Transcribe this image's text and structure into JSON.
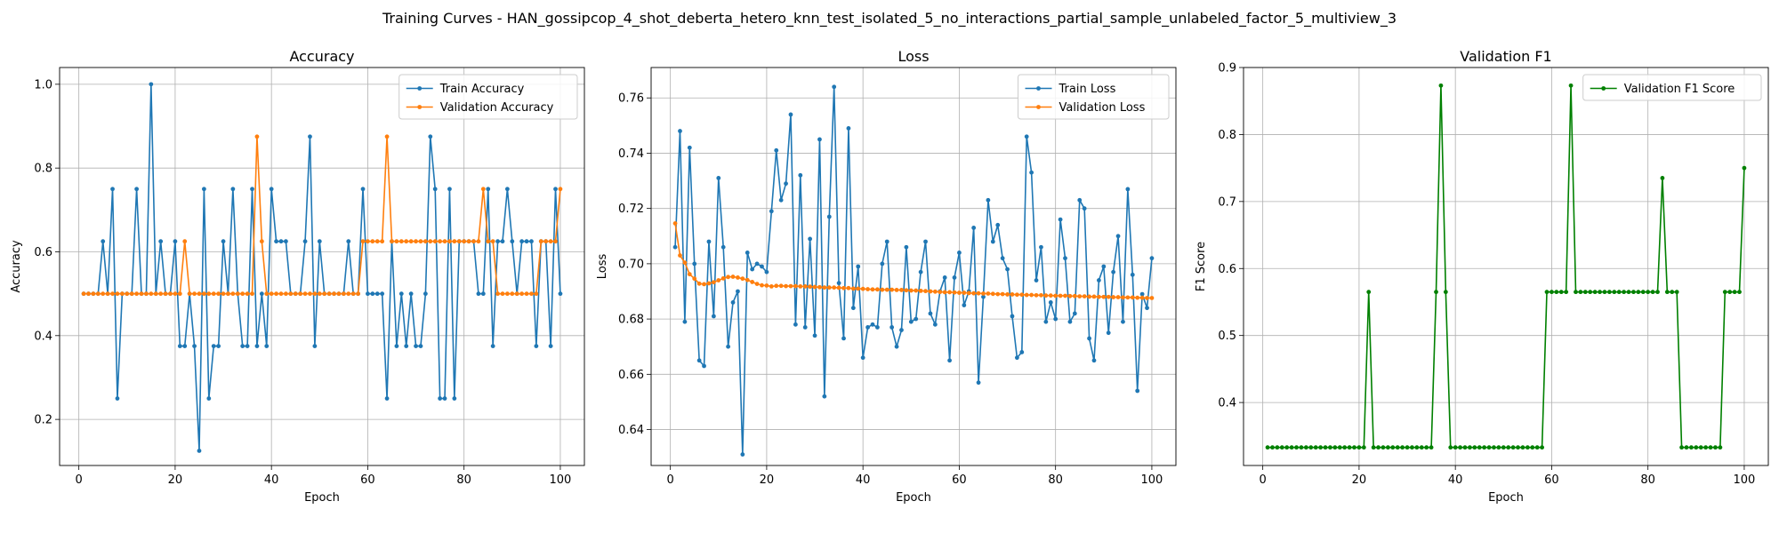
{
  "figure_title": "Training Curves - HAN_gossipcop_4_shot_deberta_hetero_knn_test_isolated_5_no_interactions_partial_sample_unlabeled_factor_5_multiview_3",
  "colors": {
    "blue": "#1f77b4",
    "orange": "#ff7f0e",
    "green": "#008000",
    "grid": "#b0b0b0"
  },
  "chart_data": [
    {
      "type": "line",
      "title": "Accuracy",
      "xlabel": "Epoch",
      "ylabel": "Accuracy",
      "xlim": [
        -4,
        105
      ],
      "ylim": [
        0.09,
        1.04
      ],
      "xticks": [
        0,
        20,
        40,
        60,
        80,
        100
      ],
      "yticks": [
        0.2,
        0.4,
        0.6,
        0.8,
        1.0
      ],
      "ytick_labels": [
        "0.2",
        "0.4",
        "0.6",
        "0.8",
        "1.0"
      ],
      "grid": true,
      "legend": "top-right",
      "series": [
        {
          "name": "Train Accuracy",
          "color": "#1f77b4",
          "values": [
            0.5,
            0.5,
            0.5,
            0.5,
            0.625,
            0.5,
            0.75,
            0.25,
            0.5,
            0.5,
            0.5,
            0.75,
            0.5,
            0.5,
            1.0,
            0.5,
            0.625,
            0.5,
            0.5,
            0.625,
            0.375,
            0.375,
            0.5,
            0.375,
            0.125,
            0.75,
            0.25,
            0.375,
            0.375,
            0.625,
            0.5,
            0.75,
            0.5,
            0.375,
            0.375,
            0.75,
            0.375,
            0.5,
            0.375,
            0.75,
            0.625,
            0.625,
            0.625,
            0.5,
            0.5,
            0.5,
            0.625,
            0.875,
            0.375,
            0.625,
            0.5,
            0.5,
            0.5,
            0.5,
            0.5,
            0.625,
            0.5,
            0.5,
            0.75,
            0.5,
            0.5,
            0.5,
            0.5,
            0.25,
            0.625,
            0.375,
            0.5,
            0.375,
            0.5,
            0.375,
            0.375,
            0.5,
            0.875,
            0.75,
            0.25,
            0.25,
            0.75,
            0.25,
            0.625,
            0.625,
            0.625,
            0.625,
            0.5,
            0.5,
            0.75,
            0.375,
            0.625,
            0.625,
            0.75,
            0.625,
            0.5,
            0.625,
            0.625,
            0.625,
            0.375,
            0.625,
            0.625,
            0.375,
            0.75,
            0.5
          ]
        },
        {
          "name": "Validation Accuracy",
          "color": "#ff7f0e",
          "values": [
            0.5,
            0.5,
            0.5,
            0.5,
            0.5,
            0.5,
            0.5,
            0.5,
            0.5,
            0.5,
            0.5,
            0.5,
            0.5,
            0.5,
            0.5,
            0.5,
            0.5,
            0.5,
            0.5,
            0.5,
            0.5,
            0.625,
            0.5,
            0.5,
            0.5,
            0.5,
            0.5,
            0.5,
            0.5,
            0.5,
            0.5,
            0.5,
            0.5,
            0.5,
            0.5,
            0.5,
            0.875,
            0.625,
            0.5,
            0.5,
            0.5,
            0.5,
            0.5,
            0.5,
            0.5,
            0.5,
            0.5,
            0.5,
            0.5,
            0.5,
            0.5,
            0.5,
            0.5,
            0.5,
            0.5,
            0.5,
            0.5,
            0.5,
            0.625,
            0.625,
            0.625,
            0.625,
            0.625,
            0.875,
            0.625,
            0.625,
            0.625,
            0.625,
            0.625,
            0.625,
            0.625,
            0.625,
            0.625,
            0.625,
            0.625,
            0.625,
            0.625,
            0.625,
            0.625,
            0.625,
            0.625,
            0.625,
            0.625,
            0.75,
            0.625,
            0.625,
            0.5,
            0.5,
            0.5,
            0.5,
            0.5,
            0.5,
            0.5,
            0.5,
            0.5,
            0.625,
            0.625,
            0.625,
            0.625,
            0.75
          ]
        }
      ]
    },
    {
      "type": "line",
      "title": "Loss",
      "xlabel": "Epoch",
      "ylabel": "Loss",
      "xlim": [
        -4,
        105
      ],
      "ylim": [
        0.627,
        0.771
      ],
      "xticks": [
        0,
        20,
        40,
        60,
        80,
        100
      ],
      "yticks": [
        0.64,
        0.66,
        0.68,
        0.7,
        0.72,
        0.74,
        0.76
      ],
      "ytick_labels": [
        "0.64",
        "0.66",
        "0.68",
        "0.70",
        "0.72",
        "0.74",
        "0.76"
      ],
      "grid": true,
      "legend": "top-right",
      "series": [
        {
          "name": "Train Loss",
          "color": "#1f77b4",
          "values": [
            0.706,
            0.748,
            0.679,
            0.742,
            0.7,
            0.665,
            0.663,
            0.708,
            0.681,
            0.731,
            0.706,
            0.67,
            0.686,
            0.69,
            0.631,
            0.704,
            0.698,
            0.7,
            0.699,
            0.697,
            0.719,
            0.741,
            0.723,
            0.729,
            0.754,
            0.678,
            0.732,
            0.677,
            0.709,
            0.674,
            0.745,
            0.652,
            0.717,
            0.764,
            0.693,
            0.673,
            0.749,
            0.684,
            0.699,
            0.666,
            0.677,
            0.678,
            0.677,
            0.7,
            0.708,
            0.677,
            0.67,
            0.676,
            0.706,
            0.679,
            0.68,
            0.697,
            0.708,
            0.682,
            0.678,
            0.69,
            0.695,
            0.665,
            0.695,
            0.704,
            0.685,
            0.69,
            0.713,
            0.657,
            0.688,
            0.723,
            0.708,
            0.714,
            0.702,
            0.698,
            0.681,
            0.666,
            0.668,
            0.746,
            0.733,
            0.694,
            0.706,
            0.679,
            0.686,
            0.68,
            0.716,
            0.702,
            0.679,
            0.682,
            0.723,
            0.72,
            0.673,
            0.665,
            0.694,
            0.699,
            0.675,
            0.697,
            0.71,
            0.679,
            0.727,
            0.696,
            0.654,
            0.689,
            0.684,
            0.702
          ]
        },
        {
          "name": "Validation Loss",
          "color": "#ff7f0e",
          "values": [
            0.7146,
            0.703,
            0.7004,
            0.6962,
            0.6946,
            0.6928,
            0.6926,
            0.6929,
            0.6933,
            0.694,
            0.6947,
            0.6952,
            0.6953,
            0.695,
            0.6946,
            0.6941,
            0.6934,
            0.6927,
            0.6922,
            0.6921,
            0.6918,
            0.692,
            0.692,
            0.6919,
            0.6919,
            0.6919,
            0.6918,
            0.6918,
            0.6917,
            0.6916,
            0.6915,
            0.6914,
            0.6914,
            0.6914,
            0.6913,
            0.6912,
            0.6912,
            0.691,
            0.691,
            0.6909,
            0.6908,
            0.6907,
            0.6907,
            0.6906,
            0.6906,
            0.6906,
            0.6905,
            0.6905,
            0.6904,
            0.6903,
            0.6903,
            0.6902,
            0.6901,
            0.69,
            0.6899,
            0.6898,
            0.6897,
            0.6897,
            0.6896,
            0.6895,
            0.6895,
            0.6894,
            0.6893,
            0.6893,
            0.6892,
            0.6892,
            0.6891,
            0.689,
            0.689,
            0.6889,
            0.6889,
            0.6888,
            0.6888,
            0.6887,
            0.6887,
            0.6886,
            0.6886,
            0.6885,
            0.6885,
            0.6884,
            0.6884,
            0.6884,
            0.6883,
            0.6883,
            0.6882,
            0.6882,
            0.6881,
            0.6881,
            0.688,
            0.688,
            0.688,
            0.6879,
            0.6879,
            0.6878,
            0.6878,
            0.6878,
            0.6877,
            0.6877,
            0.6876,
            0.6876
          ]
        }
      ]
    },
    {
      "type": "line",
      "title": "Validation F1",
      "xlabel": "Epoch",
      "ylabel": "F1 Score",
      "xlim": [
        -4,
        105
      ],
      "ylim": [
        0.306,
        0.9
      ],
      "xticks": [
        0,
        20,
        40,
        60,
        80,
        100
      ],
      "yticks": [
        0.4,
        0.5,
        0.6,
        0.7,
        0.8,
        0.9
      ],
      "ytick_labels": [
        "0.4",
        "0.5",
        "0.6",
        "0.7",
        "0.8",
        "0.9"
      ],
      "grid": true,
      "legend": "top-right",
      "series": [
        {
          "name": "Validation F1 Score",
          "color": "#008000",
          "values": [
            0.333,
            0.333,
            0.333,
            0.333,
            0.333,
            0.333,
            0.333,
            0.333,
            0.333,
            0.333,
            0.333,
            0.333,
            0.333,
            0.333,
            0.333,
            0.333,
            0.333,
            0.333,
            0.333,
            0.333,
            0.333,
            0.565,
            0.333,
            0.333,
            0.333,
            0.333,
            0.333,
            0.333,
            0.333,
            0.333,
            0.333,
            0.333,
            0.333,
            0.333,
            0.333,
            0.565,
            0.873,
            0.565,
            0.333,
            0.333,
            0.333,
            0.333,
            0.333,
            0.333,
            0.333,
            0.333,
            0.333,
            0.333,
            0.333,
            0.333,
            0.333,
            0.333,
            0.333,
            0.333,
            0.333,
            0.333,
            0.333,
            0.333,
            0.565,
            0.565,
            0.565,
            0.565,
            0.565,
            0.873,
            0.565,
            0.565,
            0.565,
            0.565,
            0.565,
            0.565,
            0.565,
            0.565,
            0.565,
            0.565,
            0.565,
            0.565,
            0.565,
            0.565,
            0.565,
            0.565,
            0.565,
            0.565,
            0.735,
            0.565,
            0.565,
            0.565,
            0.333,
            0.333,
            0.333,
            0.333,
            0.333,
            0.333,
            0.333,
            0.333,
            0.333,
            0.565,
            0.565,
            0.565,
            0.565,
            0.75
          ]
        }
      ]
    }
  ]
}
